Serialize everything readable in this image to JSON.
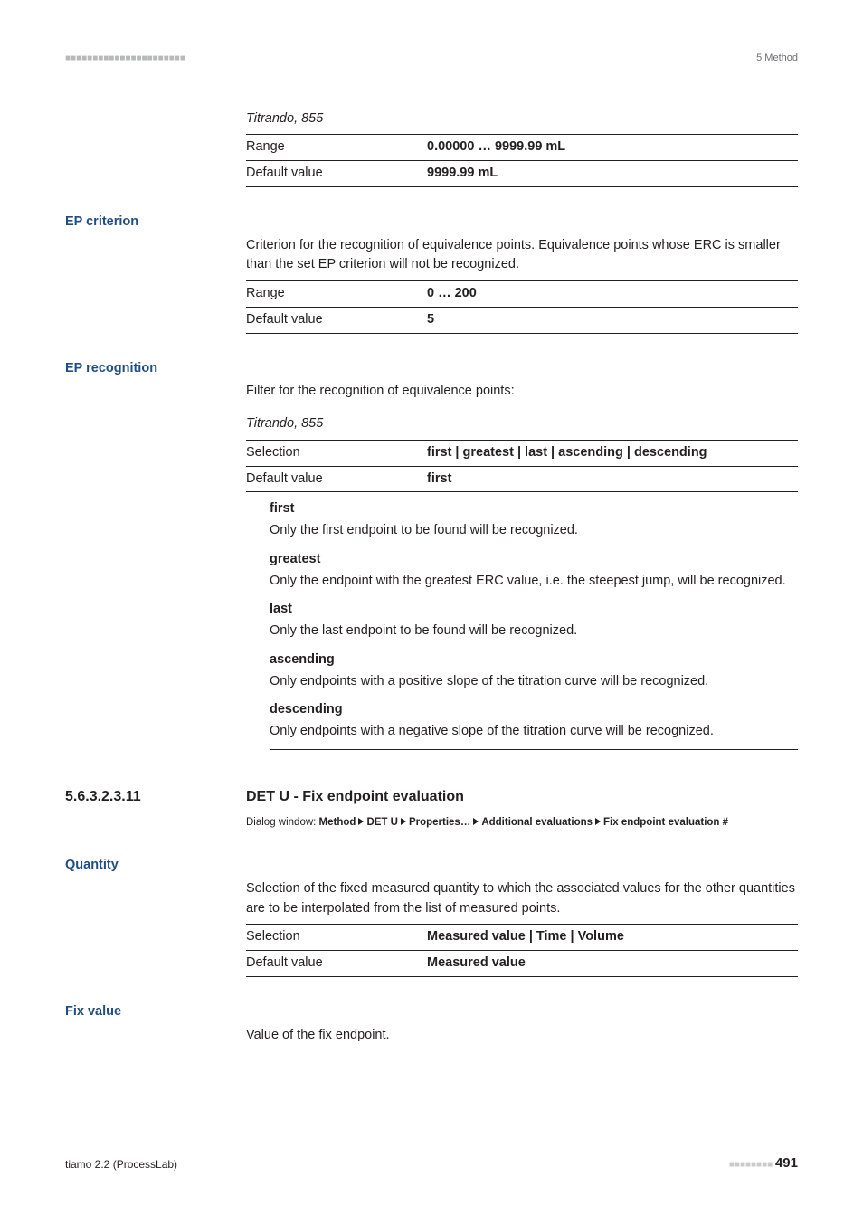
{
  "header": {
    "section": "5 Method"
  },
  "titrando_caption": "Titrando, 855",
  "spec_labels": {
    "range": "Range",
    "default": "Default value",
    "selection": "Selection"
  },
  "vol_spec": {
    "range": "0.00000 … 9999.99 mL",
    "default": "9999.99 mL"
  },
  "ep_criterion": {
    "label": "EP criterion",
    "desc": "Criterion for the recognition of equivalence points. Equivalence points whose ERC is smaller than the set EP criterion will not be recognized.",
    "range": "0 … 200",
    "default": "5"
  },
  "ep_recognition": {
    "label": "EP recognition",
    "desc": "Filter for the recognition of equivalence points:",
    "selection": "first | greatest | last | ascending | descending",
    "default": "first",
    "defs": {
      "first": {
        "term": "first",
        "text": "Only the first endpoint to be found will be recognized."
      },
      "greatest": {
        "term": "greatest",
        "text": "Only the endpoint with the greatest ERC value, i.e. the steepest jump, will be recognized."
      },
      "last": {
        "term": "last",
        "text": "Only the last endpoint to be found will be recognized."
      },
      "ascending": {
        "term": "ascending",
        "text": "Only endpoints with a positive slope of the titration curve will be recognized."
      },
      "descending": {
        "term": "descending",
        "text": "Only endpoints with a negative slope of the titration curve will be recognized."
      }
    }
  },
  "section": {
    "num": "5.6.3.2.3.11",
    "title": "DET U - Fix endpoint evaluation",
    "path_prefix": "Dialog window: ",
    "path": [
      "Method",
      "DET U",
      "Properties…",
      "Additional evaluations",
      "Fix endpoint evaluation #"
    ]
  },
  "quantity": {
    "label": "Quantity",
    "desc": "Selection of the fixed measured quantity to which the associated values for the other quantities are to be interpolated from the list of measured points.",
    "selection": "Measured value | Time | Volume",
    "default": "Measured value"
  },
  "fixvalue": {
    "label": "Fix value",
    "desc": "Value of the fix endpoint."
  },
  "footer": {
    "left": "tiamo 2.2 (ProcessLab)",
    "page": "491"
  }
}
